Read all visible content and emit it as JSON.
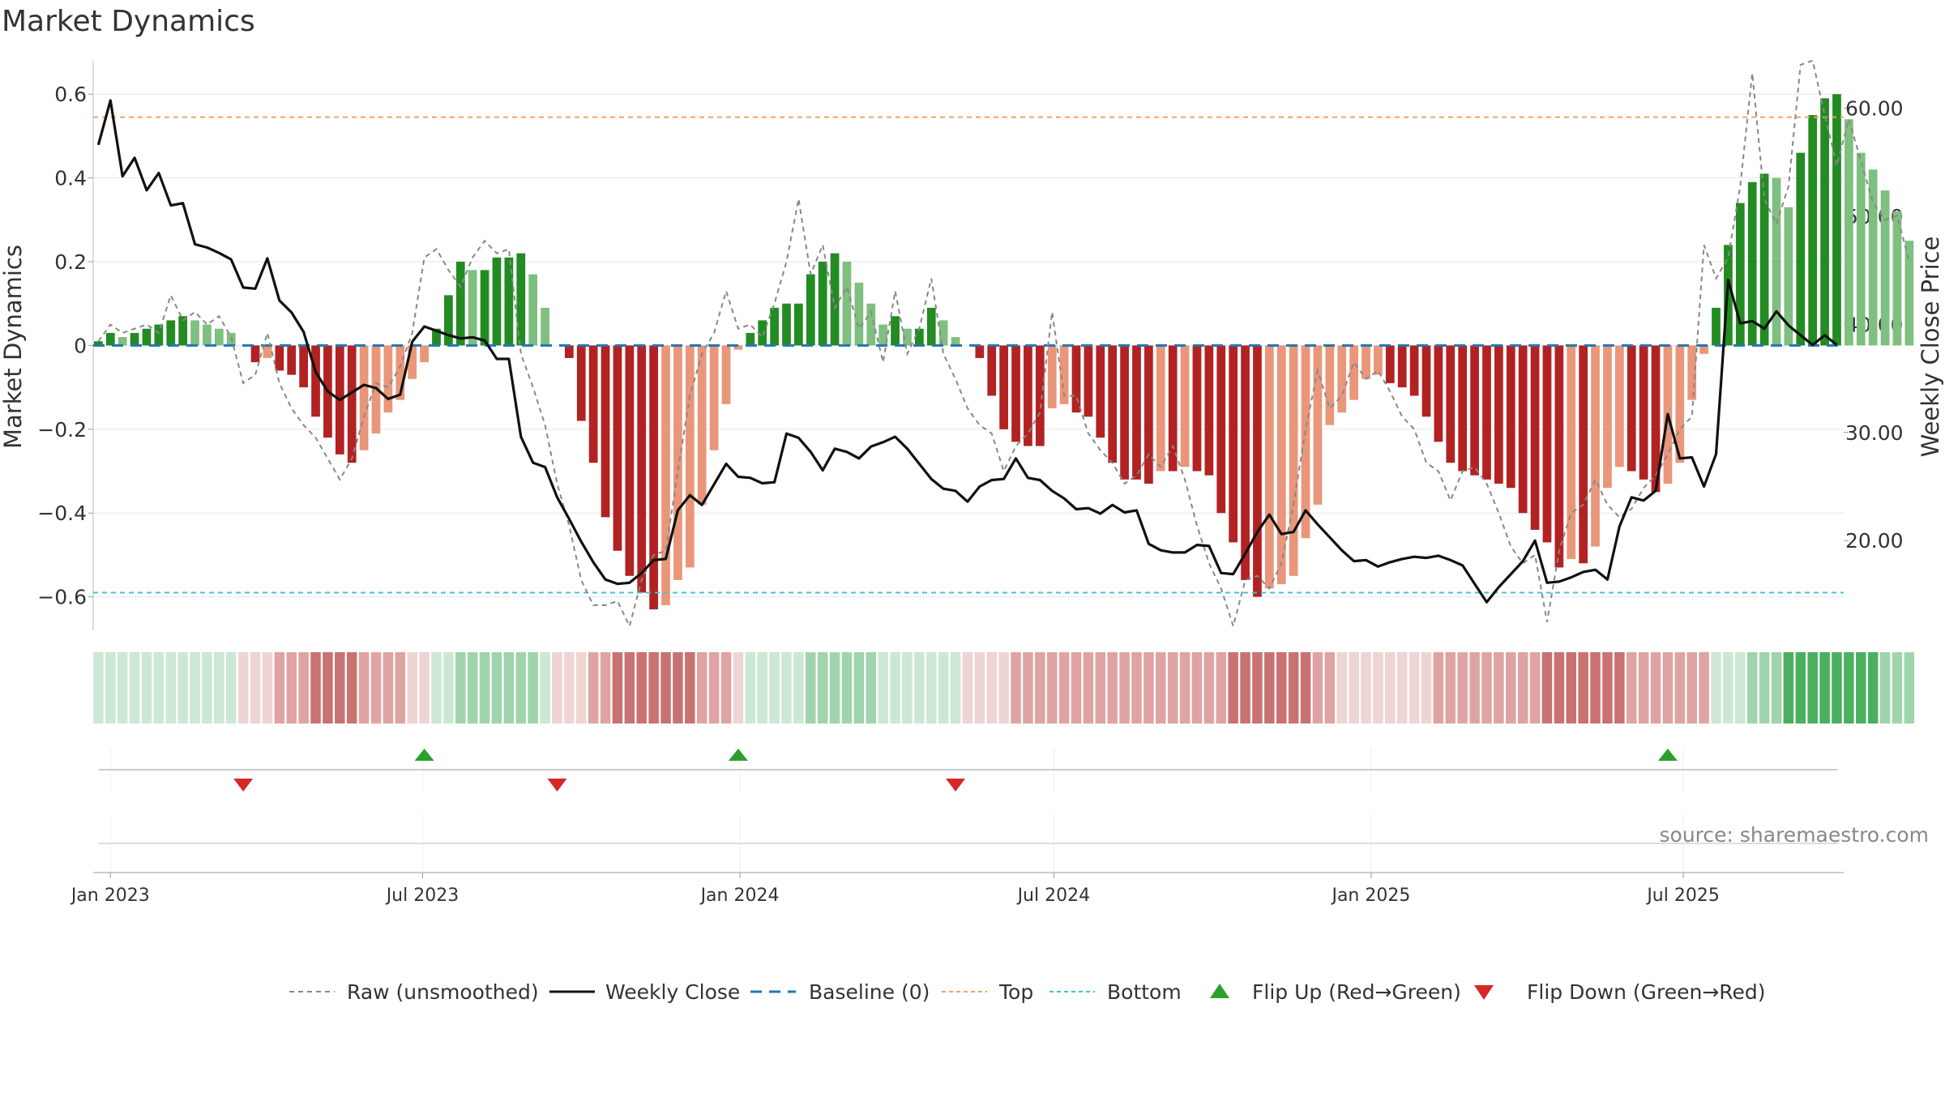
{
  "colors": {
    "bar_strong_green": "#228b22",
    "bar_light_green": "#7fbf7f",
    "bar_strong_red": "#b22222",
    "bar_light_red": "#e9967a",
    "close_line": "#111111",
    "raw_line": "#888888",
    "baseline": "#1f77b4",
    "top_line": "#f4a460",
    "bottom_line": "#40c4d0",
    "flip_up": "#2ca02c",
    "flip_down": "#d62728",
    "grid": "#e6e6e6"
  },
  "chart_data": {
    "type": "bar",
    "title": "Market Dynamics",
    "ylabel_left": "Market Dynamics",
    "ylabel_right": "Weekly Close Price",
    "ylim_left": [
      -0.68,
      0.67
    ],
    "ylim_right": [
      11.7,
      64.0
    ],
    "yticks_left": [
      0.6,
      0.4,
      0.2,
      0,
      -0.2,
      -0.4,
      -0.6
    ],
    "yticks_left_labels": [
      "0.6",
      "0.4",
      "0.2",
      "0",
      "−0.2",
      "−0.4",
      "−0.6"
    ],
    "yticks_right": [
      60,
      50,
      40,
      30,
      20
    ],
    "yticks_right_labels": [
      "60.00",
      "50.00",
      "40.00",
      "30.00",
      "20.00"
    ],
    "x_ticks": [
      "2023-01-01",
      "2023-07-01",
      "2024-01-01",
      "2024-07-01",
      "2025-01-01",
      "2025-07-01"
    ],
    "x_tick_labels": [
      "Jan 2023",
      "Jul 2023",
      "Jan 2024",
      "Jul 2024",
      "Jan 2025",
      "Jul 2025"
    ],
    "x_range": [
      "2022-12-22",
      "2025-10-02"
    ],
    "start_date": "2022-12-25",
    "values": [
      0.01,
      0.03,
      0.02,
      0.03,
      0.04,
      0.05,
      0.06,
      0.07,
      0.06,
      0.05,
      0.04,
      0.03,
      0,
      -0.04,
      -0.03,
      -0.06,
      -0.07,
      -0.1,
      -0.17,
      -0.22,
      -0.26,
      -0.28,
      -0.25,
      -0.21,
      -0.16,
      -0.13,
      -0.08,
      -0.04,
      0.04,
      0.12,
      0.2,
      0.18,
      0.18,
      0.21,
      0.21,
      0.22,
      0.17,
      0.09,
      0,
      -0.03,
      -0.18,
      -0.28,
      -0.41,
      -0.49,
      -0.55,
      -0.59,
      -0.63,
      -0.62,
      -0.56,
      -0.53,
      -0.38,
      -0.25,
      -0.14,
      -0.01,
      0.03,
      0.06,
      0.09,
      0.1,
      0.1,
      0.17,
      0.2,
      0.22,
      0.2,
      0.15,
      0.1,
      0.05,
      0.07,
      0.04,
      0.04,
      0.09,
      0.06,
      0.02,
      0,
      -0.03,
      -0.12,
      -0.2,
      -0.23,
      -0.24,
      -0.24,
      -0.15,
      -0.14,
      -0.16,
      -0.17,
      -0.22,
      -0.28,
      -0.32,
      -0.32,
      -0.33,
      -0.3,
      -0.3,
      -0.29,
      -0.3,
      -0.31,
      -0.4,
      -0.47,
      -0.56,
      -0.6,
      -0.58,
      -0.57,
      -0.55,
      -0.46,
      -0.38,
      -0.19,
      -0.16,
      -0.13,
      -0.08,
      -0.07,
      -0.09,
      -0.1,
      -0.12,
      -0.17,
      -0.23,
      -0.28,
      -0.3,
      -0.31,
      -0.32,
      -0.33,
      -0.34,
      -0.4,
      -0.44,
      -0.47,
      -0.53,
      -0.51,
      -0.52,
      -0.48,
      -0.34,
      -0.29,
      -0.3,
      -0.32,
      -0.35,
      -0.33,
      -0.28,
      -0.13,
      -0.02,
      0.09,
      0.24,
      0.34,
      0.39,
      0.41,
      0.4,
      0.33,
      0.46,
      0.55,
      0.59,
      0.6,
      0.54,
      0.46,
      0.42,
      0.37,
      0.32,
      0.25
    ],
    "close_prices": [
      56.6,
      60.7,
      53.7,
      55.4,
      52.4,
      54.0,
      51.0,
      51.2,
      47.4,
      47.1,
      46.6,
      46.0,
      43.4,
      43.3,
      46.1,
      42.2,
      41.1,
      39.3,
      35.6,
      33.8,
      33.0,
      33.7,
      34.4,
      34.1,
      33.1,
      33.5,
      38.4,
      39.8,
      39.4,
      39.0,
      38.7,
      38.8,
      38.5,
      36.8,
      36.8,
      29.6,
      27.2,
      26.8,
      24.0,
      22.0,
      19.9,
      18.0,
      16.4,
      16.0,
      16.1,
      17.0,
      18.2,
      18.3,
      22.8,
      24.2,
      23.3,
      25.2,
      27.1,
      25.9,
      25.8,
      25.3,
      25.4,
      29.9,
      29.5,
      28.2,
      26.5,
      28.5,
      28.2,
      27.6,
      28.7,
      29.1,
      29.6,
      28.5,
      27.1,
      25.7,
      24.8,
      24.6,
      23.6,
      25.0,
      25.6,
      25.7,
      27.6,
      25.8,
      25.6,
      24.6,
      23.9,
      22.9,
      23.0,
      22.5,
      23.3,
      22.6,
      22.8,
      19.7,
      19.1,
      18.9,
      18.9,
      19.6,
      19.5,
      17.0,
      16.9,
      18.8,
      20.8,
      22.4,
      20.6,
      20.8,
      22.8,
      21.5,
      20.3,
      19.1,
      18.1,
      18.2,
      17.6,
      18.0,
      18.3,
      18.5,
      18.4,
      18.6,
      18.2,
      17.7,
      16.0,
      14.3,
      15.7,
      16.9,
      18.1,
      20.0,
      16.1,
      16.2,
      16.6,
      17.1,
      17.3,
      16.4,
      21.3,
      24.0,
      23.7,
      24.6,
      31.7,
      27.6,
      27.7,
      25.0,
      28.0,
      44.1,
      40.1,
      40.3,
      39.6,
      41.2,
      39.9,
      39.0,
      38.1,
      39.0,
      38.1
    ],
    "raw_values": [
      0.01,
      0.05,
      0.03,
      0.04,
      0.05,
      0.03,
      0.12,
      0.06,
      0.08,
      0.05,
      0.07,
      0.02,
      -0.09,
      -0.07,
      0.03,
      -0.09,
      -0.15,
      -0.19,
      -0.22,
      -0.27,
      -0.32,
      -0.27,
      -0.17,
      -0.09,
      -0.1,
      -0.05,
      0.03,
      0.21,
      0.23,
      0.18,
      0.14,
      0.21,
      0.25,
      0.22,
      0.23,
      -0.02,
      -0.1,
      -0.19,
      -0.33,
      -0.43,
      -0.56,
      -0.62,
      -0.62,
      -0.61,
      -0.67,
      -0.56,
      -0.5,
      -0.49,
      -0.3,
      -0.12,
      -0.02,
      0.03,
      0.13,
      0.04,
      0.05,
      0.02,
      0.1,
      0.2,
      0.35,
      0.17,
      0.24,
      0.09,
      0.14,
      0.04,
      0.08,
      -0.04,
      0.13,
      -0.02,
      0.04,
      0.16,
      -0.02,
      -0.08,
      -0.15,
      -0.19,
      -0.21,
      -0.3,
      -0.24,
      -0.21,
      -0.16,
      0.08,
      -0.12,
      -0.12,
      -0.21,
      -0.25,
      -0.28,
      -0.33,
      -0.31,
      -0.26,
      -0.29,
      -0.24,
      -0.32,
      -0.43,
      -0.52,
      -0.58,
      -0.67,
      -0.56,
      -0.55,
      -0.58,
      -0.52,
      -0.38,
      -0.2,
      -0.06,
      -0.15,
      -0.12,
      -0.04,
      -0.08,
      -0.06,
      -0.11,
      -0.17,
      -0.2,
      -0.28,
      -0.3,
      -0.37,
      -0.3,
      -0.29,
      -0.33,
      -0.4,
      -0.48,
      -0.52,
      -0.5,
      -0.66,
      -0.49,
      -0.4,
      -0.38,
      -0.32,
      -0.38,
      -0.41,
      -0.39,
      -0.34,
      -0.31,
      -0.26,
      -0.2,
      -0.17,
      0.24,
      0.16,
      0.21,
      0.38,
      0.65,
      0.35,
      0.29,
      0.38,
      0.67,
      0.68,
      0.55,
      0.43,
      0.54,
      0.44,
      0.34,
      0.3,
      0.31,
      0.2
    ],
    "regime_strength": [
      1,
      1,
      1,
      1,
      1,
      1,
      1,
      1,
      1,
      1,
      1,
      1,
      1,
      1,
      1,
      2,
      2,
      2,
      3,
      3,
      3,
      3,
      2,
      2,
      2,
      2,
      1,
      1,
      1,
      1,
      2,
      2,
      2,
      2,
      2,
      2,
      2,
      1,
      1,
      1,
      1,
      2,
      2,
      3,
      3,
      3,
      3,
      3,
      3,
      3,
      2,
      2,
      2,
      1,
      1,
      1,
      1,
      1,
      1,
      2,
      2,
      2,
      2,
      2,
      2,
      1,
      1,
      1,
      1,
      1,
      1,
      1,
      1,
      1,
      1,
      1,
      2,
      2,
      2,
      2,
      2,
      2,
      2,
      2,
      2,
      2,
      2,
      2,
      2,
      2,
      2,
      2,
      2,
      2,
      3,
      3,
      3,
      3,
      3,
      3,
      3,
      2,
      2,
      1,
      1,
      1,
      1,
      1,
      1,
      1,
      1,
      2,
      2,
      2,
      2,
      2,
      2,
      2,
      2,
      2,
      3,
      3,
      3,
      3,
      3,
      3,
      3,
      2,
      2,
      2,
      2,
      2,
      2,
      2,
      1,
      1,
      1,
      2,
      2,
      2,
      3,
      3,
      3,
      3,
      3,
      3,
      3,
      3,
      2,
      2,
      2,
      2,
      2,
      2
    ],
    "top_level": 0.545,
    "bottom_level": -0.59,
    "flip_up_dates": [
      "2023-07-02",
      "2023-12-31",
      "2025-06-22"
    ],
    "flip_down_dates": [
      "2023-03-19",
      "2023-09-17",
      "2024-05-05"
    ],
    "legend": {
      "raw": "Raw (unsmoothed)",
      "close": "Weekly Close",
      "baseline": "Baseline (0)",
      "top": "Top",
      "bottom": "Bottom",
      "flip_up": "Flip Up (Red→Green)",
      "flip_down": "Flip Down (Green→Red)"
    },
    "source": "source: sharemaestro.com"
  }
}
